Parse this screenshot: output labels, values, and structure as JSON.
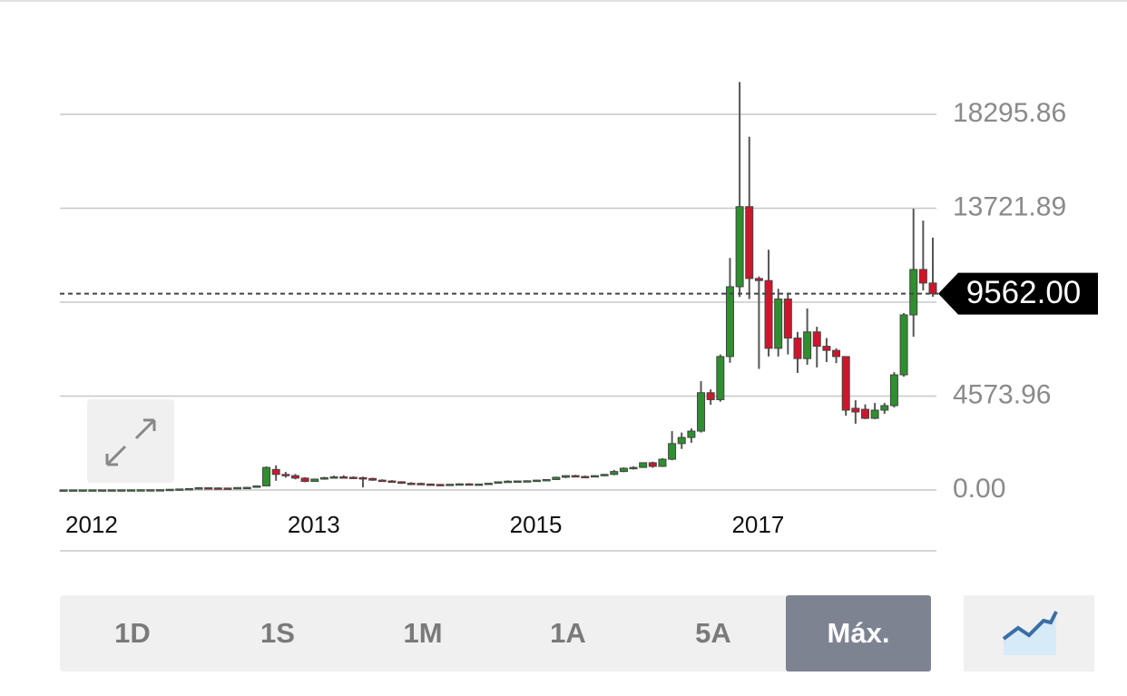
{
  "chart_data": {
    "type": "candlestick",
    "categories": [
      "2012",
      null,
      null,
      null,
      null,
      null,
      null,
      null,
      null,
      null,
      null,
      null,
      null,
      null,
      null,
      null,
      null,
      null,
      null,
      null,
      null,
      null,
      null,
      "2013",
      null,
      null,
      null,
      null,
      null,
      null,
      null,
      null,
      null,
      null,
      null,
      null,
      null,
      null,
      null,
      null,
      null,
      null,
      null,
      null,
      null,
      null,
      "2015",
      null,
      null,
      null,
      null,
      null,
      null,
      null,
      null,
      null,
      null,
      null,
      null,
      null,
      null,
      null,
      null,
      null,
      null,
      null,
      null,
      null,
      null,
      "2017",
      null,
      null,
      null,
      null,
      null,
      null,
      null,
      null,
      null,
      null,
      null,
      null,
      null,
      null,
      null,
      null,
      null,
      null,
      null,
      null,
      null
    ],
    "open": [
      5,
      5,
      6,
      6,
      7,
      7,
      8,
      9,
      10,
      12,
      13,
      16,
      35,
      50,
      70,
      110,
      100,
      95,
      90,
      120,
      130,
      200,
      1000,
      760,
      700,
      580,
      420,
      530,
      600,
      640,
      620,
      600,
      560,
      480,
      440,
      400,
      330,
      320,
      290,
      270,
      260,
      280,
      300,
      280,
      290,
      330,
      400,
      430,
      440,
      450,
      480,
      510,
      620,
      700,
      660,
      650,
      700,
      760,
      900,
      1060,
      1100,
      1330,
      1150,
      1500,
      2260,
      2560,
      2870,
      4740,
      4400,
      6500,
      9900,
      13800,
      10300,
      10200,
      6900,
      9300,
      7400,
      6400,
      7700,
      7000,
      6800,
      6500,
      3980,
      3930,
      3490,
      3890,
      4110,
      5610,
      8530,
      10740,
      10080
    ],
    "high": [
      6,
      6,
      7,
      7,
      8,
      9,
      10,
      11,
      13,
      15,
      20,
      40,
      60,
      75,
      140,
      130,
      120,
      110,
      130,
      150,
      210,
      1150,
      1200,
      880,
      780,
      620,
      560,
      640,
      700,
      720,
      660,
      650,
      600,
      520,
      480,
      430,
      380,
      360,
      320,
      300,
      290,
      320,
      330,
      310,
      350,
      420,
      470,
      460,
      470,
      500,
      530,
      650,
      720,
      740,
      700,
      720,
      780,
      980,
      1100,
      1150,
      1350,
      1380,
      1550,
      2870,
      2800,
      3000,
      5300,
      4900,
      6600,
      11300,
      19870,
      17200,
      10400,
      11700,
      9800,
      9600,
      7700,
      8840,
      7950,
      7400,
      6900,
      6500,
      4370,
      4170,
      4240,
      4240,
      5740,
      8620,
      13700,
      13120,
      12290
    ],
    "low": [
      4,
      4,
      5,
      5,
      6,
      6,
      7,
      8,
      9,
      10,
      12,
      15,
      30,
      40,
      65,
      90,
      80,
      80,
      85,
      100,
      120,
      190,
      450,
      600,
      520,
      380,
      400,
      500,
      560,
      590,
      560,
      130,
      450,
      400,
      380,
      300,
      280,
      270,
      240,
      230,
      220,
      250,
      260,
      240,
      270,
      310,
      380,
      400,
      410,
      420,
      450,
      490,
      580,
      620,
      610,
      630,
      670,
      720,
      870,
      1000,
      1080,
      1080,
      1120,
      1450,
      2000,
      2300,
      2800,
      4150,
      4300,
      6200,
      9400,
      9300,
      5900,
      6500,
      6500,
      6600,
      5700,
      6100,
      5970,
      6230,
      6180,
      3620,
      3230,
      3450,
      3450,
      3710,
      4020,
      5520,
      7470,
      9720,
      9410
    ],
    "close": [
      5,
      6,
      6,
      7,
      7,
      8,
      9,
      10,
      12,
      13,
      16,
      35,
      50,
      70,
      110,
      100,
      95,
      90,
      120,
      130,
      200,
      1100,
      760,
      700,
      580,
      420,
      530,
      600,
      640,
      620,
      600,
      560,
      480,
      440,
      400,
      330,
      320,
      290,
      270,
      260,
      280,
      300,
      280,
      290,
      330,
      400,
      430,
      440,
      450,
      480,
      510,
      620,
      700,
      660,
      650,
      700,
      760,
      900,
      1060,
      1100,
      1330,
      1150,
      1500,
      2260,
      2560,
      2870,
      4740,
      4400,
      6500,
      9900,
      13800,
      10300,
      10200,
      6900,
      9300,
      7400,
      6400,
      7700,
      7000,
      6800,
      6500,
      3890,
      3800,
      3490,
      3890,
      4110,
      5610,
      8530,
      10740,
      10080,
      9562
    ],
    "up_color": "#2e8f2e",
    "down_color": "#d2142a",
    "wick_color": "#555555",
    "ylim": [
      0,
      20770
    ],
    "yticks": [
      {
        "value": 0,
        "label": "0.00"
      },
      4573.96,
      {
        "value": 9147.93,
        "label": null
      },
      13721.89,
      18295.86
    ],
    "grid": true,
    "last_price": {
      "value": 9562,
      "label": "9562.00"
    }
  },
  "range_buttons": [
    "1D",
    "1S",
    "1M",
    "1A",
    "5A",
    "Máx."
  ],
  "selected_range": 5
}
